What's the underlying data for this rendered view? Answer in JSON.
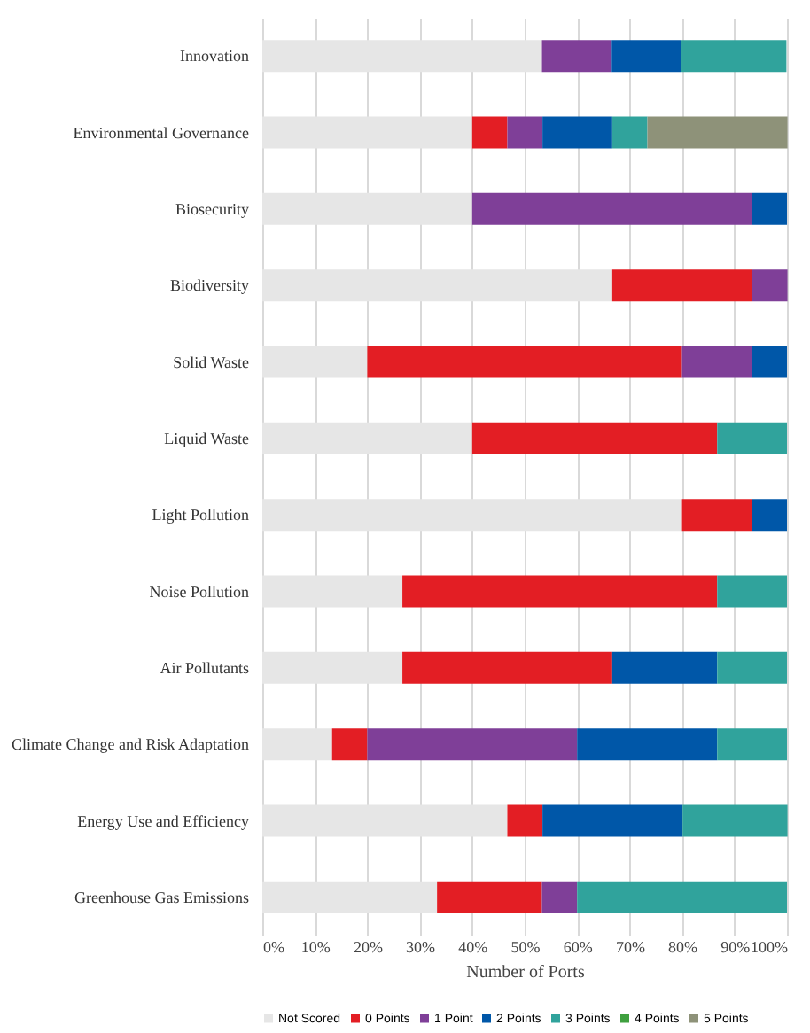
{
  "chart_data": {
    "type": "bar",
    "orientation": "horizontal",
    "stacked": true,
    "xlabel": "Number of Ports",
    "categories": [
      "Innovation",
      "Environmental Governance",
      "Biosecurity",
      "Biodiversity",
      "Solid Waste",
      "Liquid Waste",
      "Light Pollution",
      "Noise Pollution",
      "Air Pollutants",
      "Climate Change and Risk Adaptation",
      "Energy Use and Efficiency",
      "Greenhouse Gas Emissions"
    ],
    "series": [
      {
        "name": "Not Scored",
        "color": "#e6e6e6",
        "values": [
          53.3,
          40,
          40,
          66.7,
          20,
          40,
          80,
          26.7,
          26.7,
          13.3,
          46.7,
          33.3
        ]
      },
      {
        "name": "0 Points",
        "color": "#e31e24",
        "values": [
          0,
          6.7,
          0,
          26.7,
          60,
          46.7,
          13.3,
          60,
          40,
          6.7,
          6.7,
          20
        ]
      },
      {
        "name": "1 Point",
        "color": "#7f3f98",
        "values": [
          13.3,
          6.7,
          53.3,
          6.7,
          13.3,
          0,
          0,
          0,
          0,
          40,
          0,
          6.7
        ]
      },
      {
        "name": "2 Points",
        "color": "#0057a8",
        "values": [
          13.3,
          13.3,
          6.7,
          0,
          6.7,
          0,
          6.7,
          0,
          20,
          26.7,
          26.7,
          0
        ]
      },
      {
        "name": "3 Points",
        "color": "#30a39c",
        "values": [
          20,
          6.7,
          0,
          0,
          0,
          13.3,
          0,
          13.3,
          13.3,
          13.3,
          20,
          40
        ]
      },
      {
        "name": "4 Points",
        "color": "#3fa03f",
        "values": [
          0,
          0,
          0,
          0,
          0,
          0,
          0,
          0,
          0,
          0,
          0,
          0
        ]
      },
      {
        "name": "5 Points",
        "color": "#8e9279",
        "values": [
          0,
          26.7,
          0,
          0,
          0,
          0,
          0,
          0,
          0,
          0,
          0,
          0
        ]
      }
    ],
    "xlim": [
      0,
      100
    ],
    "xticks": [
      {
        "value": 0,
        "label": "0%"
      },
      {
        "value": 10,
        "label": "10%"
      },
      {
        "value": 20,
        "label": "20%"
      },
      {
        "value": 30,
        "label": "30%"
      },
      {
        "value": 40,
        "label": "40%"
      },
      {
        "value": 50,
        "label": "50%"
      },
      {
        "value": 60,
        "label": "60%"
      },
      {
        "value": 70,
        "label": "70%"
      },
      {
        "value": 80,
        "label": "80%"
      },
      {
        "value": 90,
        "label": "90%"
      },
      {
        "value": 100,
        "label": "100%"
      }
    ],
    "grid": "x",
    "legend": "bottom"
  }
}
